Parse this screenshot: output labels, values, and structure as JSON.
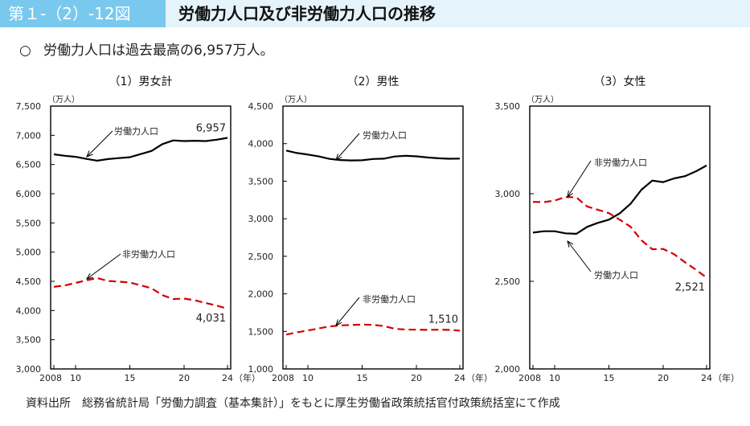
{
  "header": {
    "figure_number": "第１-（2）-12図",
    "title": "労働力人口及び非労働力人口の推移"
  },
  "note": {
    "bullet": "○",
    "text": "労働力人口は過去最高の6,957万人。"
  },
  "source": "資料出所　総務省統計局「労働力調査（基本集計）」をもとに厚生労働省政策統括官付政策統括室にて作成",
  "chart_data": [
    {
      "type": "line",
      "title": "（1）男女計",
      "ylabel": "（万人）",
      "xlabel": "（年）",
      "x": [
        2008,
        2009,
        2010,
        2011,
        2012,
        2013,
        2014,
        2015,
        2016,
        2017,
        2018,
        2019,
        2020,
        2021,
        2022,
        2023,
        2024
      ],
      "x_tick_labels": [
        "2008",
        "10",
        "15",
        "20",
        "24"
      ],
      "y_ticks": [
        "3,000",
        "3,500",
        "4,000",
        "4,500",
        "5,000",
        "5,500",
        "6,000",
        "6,500",
        "7,000",
        "7,500"
      ],
      "ylim": [
        3000,
        7500
      ],
      "series": [
        {
          "name": "労働力人口",
          "color": "#000000",
          "dash": false,
          "values": [
            6674,
            6650,
            6632,
            6596,
            6565,
            6593,
            6609,
            6625,
            6678,
            6732,
            6849,
            6912,
            6902,
            6907,
            6902,
            6925,
            6957
          ],
          "end_label": "6,957"
        },
        {
          "name": "非労働力人口",
          "color": "#d40000",
          "dash": true,
          "values": [
            4405,
            4430,
            4473,
            4517,
            4555,
            4506,
            4494,
            4479,
            4432,
            4382,
            4263,
            4197,
            4204,
            4175,
            4128,
            4084,
            4031
          ],
          "end_label": "4,031"
        }
      ]
    },
    {
      "type": "line",
      "title": "（2）男性",
      "ylabel": "（万人）",
      "xlabel": "（年）",
      "x": [
        2008,
        2009,
        2010,
        2011,
        2012,
        2013,
        2014,
        2015,
        2016,
        2017,
        2018,
        2019,
        2020,
        2021,
        2022,
        2023,
        2024
      ],
      "x_tick_labels": [
        "2008",
        "10",
        "15",
        "20",
        "24"
      ],
      "y_ticks": [
        "1,000",
        "1,500",
        "2,000",
        "2,500",
        "3,000",
        "3,500",
        "4,000",
        "4,500"
      ],
      "ylim": [
        1000,
        4500
      ],
      "series": [
        {
          "name": "労働力人口",
          "color": "#000000",
          "dash": false,
          "values": [
            3908,
            3875,
            3855,
            3830,
            3797,
            3782,
            3776,
            3779,
            3796,
            3800,
            3829,
            3839,
            3831,
            3816,
            3805,
            3799,
            3801
          ],
          "end_label": ""
        },
        {
          "name": "非労働力人口",
          "color": "#d40000",
          "dash": true,
          "values": [
            1457,
            1487,
            1512,
            1539,
            1566,
            1579,
            1585,
            1590,
            1587,
            1572,
            1534,
            1524,
            1522,
            1520,
            1522,
            1520,
            1510
          ],
          "end_label": "1,510"
        }
      ]
    },
    {
      "type": "line",
      "title": "（3）女性",
      "ylabel": "（万人）",
      "xlabel": "（年）",
      "x": [
        2008,
        2009,
        2010,
        2011,
        2012,
        2013,
        2014,
        2015,
        2016,
        2017,
        2018,
        2019,
        2020,
        2021,
        2022,
        2023,
        2024
      ],
      "x_tick_labels": [
        "2008",
        "10",
        "15",
        "20",
        "24"
      ],
      "y_ticks": [
        "2,000",
        "2,500",
        "3,000",
        "3,500"
      ],
      "ylim": [
        2000,
        3500
      ],
      "series": [
        {
          "name": "非労働力人口",
          "color": "#d40000",
          "dash": true,
          "values": [
            2953,
            2952,
            2961,
            2981,
            2979,
            2927,
            2908,
            2889,
            2852,
            2811,
            2734,
            2683,
            2685,
            2655,
            2609,
            2567,
            2521
          ],
          "end_label": "2,521"
        },
        {
          "name": "労働力人口",
          "color": "#000000",
          "dash": false,
          "values": [
            2778,
            2786,
            2786,
            2774,
            2771,
            2811,
            2834,
            2852,
            2888,
            2943,
            3023,
            3075,
            3066,
            3087,
            3100,
            3127,
            3161
          ],
          "end_label": ""
        }
      ]
    }
  ]
}
